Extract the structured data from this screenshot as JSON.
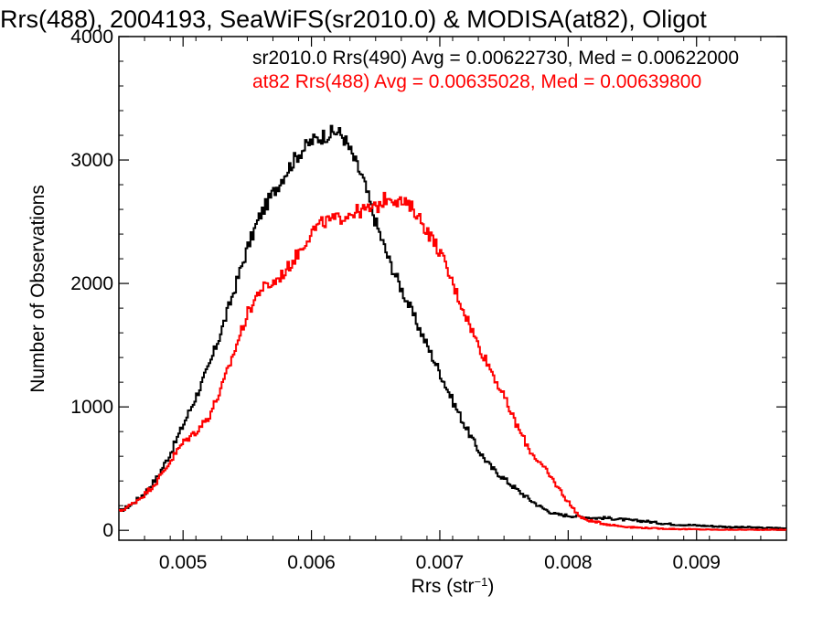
{
  "chart_data": {
    "type": "line",
    "title": "Rrs(488), 2004193, SeaWiFS(sr2010.0) & MODISA(at82), Oligot",
    "xlabel": "Rrs (str",
    "xlabel_sup": "−1",
    "xlabel_close": ")",
    "ylabel": "Number of Observations",
    "xlim": [
      0.0045,
      0.0097
    ],
    "ylim": [
      -80,
      4000
    ],
    "xticks": [
      0.005,
      0.006,
      0.007,
      0.008,
      0.009
    ],
    "xtick_labels": [
      "0.005",
      "0.006",
      "0.007",
      "0.008",
      "0.009"
    ],
    "yticks": [
      0,
      1000,
      2000,
      3000,
      4000
    ],
    "ytick_labels": [
      "0",
      "1000",
      "2000",
      "3000",
      "4000"
    ],
    "x_minor_step": 0.0002,
    "y_minor_step": 200,
    "grid": false,
    "step": true,
    "annotations": [
      {
        "text": "sr2010.0 Rrs(490) Avg = 0.00622730, Med = 0.00622000",
        "color": "#000000"
      },
      {
        "text": "at82 Rrs(488) Avg = 0.00635028, Med = 0.00639800",
        "color": "#ff0000"
      }
    ],
    "series": [
      {
        "color": "#000000",
        "x": [
          0.0045,
          0.0046,
          0.0047,
          0.0048,
          0.0049,
          0.005,
          0.0051,
          0.0052,
          0.0053,
          0.0054,
          0.0055,
          0.0056,
          0.0057,
          0.0058,
          0.0059,
          0.006,
          0.0061,
          0.0062,
          0.00625,
          0.0063,
          0.0064,
          0.0065,
          0.0066,
          0.0067,
          0.0068,
          0.0069,
          0.007,
          0.0071,
          0.0072,
          0.0073,
          0.0074,
          0.0075,
          0.0076,
          0.0077,
          0.0078,
          0.0079,
          0.008,
          0.0081,
          0.0082,
          0.0083,
          0.0084,
          0.0085,
          0.0086,
          0.0087,
          0.0088,
          0.0089,
          0.009,
          0.0091,
          0.0092,
          0.0093,
          0.0094,
          0.0095,
          0.0096,
          0.0097
        ],
        "y": [
          150,
          210,
          300,
          430,
          620,
          850,
          1080,
          1320,
          1620,
          1950,
          2280,
          2550,
          2730,
          2900,
          3050,
          3150,
          3200,
          3230,
          3190,
          3080,
          2850,
          2500,
          2200,
          1960,
          1730,
          1500,
          1280,
          1050,
          840,
          650,
          510,
          420,
          330,
          250,
          180,
          130,
          120,
          110,
          100,
          100,
          90,
          80,
          75,
          60,
          50,
          45,
          40,
          35,
          30,
          25,
          25,
          20,
          20,
          15
        ]
      },
      {
        "color": "#ff0000",
        "x": [
          0.0045,
          0.0046,
          0.0047,
          0.0048,
          0.0049,
          0.005,
          0.0051,
          0.0052,
          0.0053,
          0.0054,
          0.0055,
          0.0056,
          0.0057,
          0.0058,
          0.0059,
          0.006,
          0.0061,
          0.0062,
          0.0063,
          0.0064,
          0.0065,
          0.0066,
          0.0067,
          0.0068,
          0.0069,
          0.007,
          0.0071,
          0.0072,
          0.0073,
          0.0074,
          0.0075,
          0.0076,
          0.0077,
          0.0078,
          0.0079,
          0.008,
          0.0081,
          0.0082,
          0.0083,
          0.0084,
          0.0085,
          0.0086,
          0.0087,
          0.0088,
          0.0089,
          0.009,
          0.0091,
          0.0092,
          0.0093,
          0.0094,
          0.0095,
          0.0096,
          0.0097
        ],
        "y": [
          150,
          210,
          290,
          400,
          560,
          710,
          800,
          920,
          1150,
          1450,
          1750,
          1950,
          2000,
          2100,
          2250,
          2420,
          2500,
          2520,
          2570,
          2590,
          2610,
          2710,
          2660,
          2600,
          2430,
          2260,
          2000,
          1750,
          1500,
          1300,
          1080,
          850,
          650,
          520,
          380,
          230,
          100,
          70,
          50,
          35,
          25,
          20,
          15,
          12,
          10,
          8,
          6,
          5,
          5,
          5,
          5,
          5,
          5
        ]
      }
    ]
  }
}
